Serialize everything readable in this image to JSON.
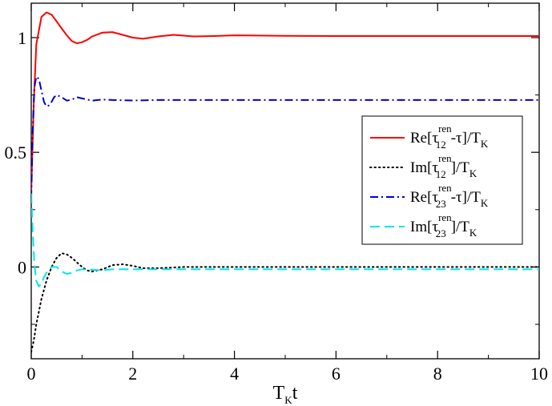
{
  "chart_data": {
    "type": "line",
    "title": "",
    "xlabel": {
      "base": "T",
      "sub": "K",
      "tail": "t"
    },
    "ylabel": "",
    "xlim": [
      0,
      10
    ],
    "ylim": [
      -0.4,
      1.15
    ],
    "xticks": [
      0,
      2,
      4,
      6,
      8,
      10
    ],
    "xtick_labels": [
      "0",
      "2",
      "4",
      "6",
      "8",
      "10"
    ],
    "yticks": [
      0,
      0.5,
      1
    ],
    "ytick_labels": [
      "0",
      "0.5",
      "1"
    ],
    "grid": false,
    "legend_position": "middle-right",
    "series": [
      {
        "name": "Re[τ12ren-τ]/TK",
        "legend": {
          "pre": "Re[τ",
          "sup": "ren",
          "sub": "12",
          "post": "-τ]/T",
          "post_sub": "K"
        },
        "color": "#ff0000",
        "dash": "solid",
        "x": [
          0,
          0.05,
          0.1,
          0.2,
          0.3,
          0.4,
          0.5,
          0.6,
          0.7,
          0.8,
          0.9,
          1.0,
          1.1,
          1.2,
          1.4,
          1.6,
          1.8,
          2.0,
          2.2,
          2.5,
          2.8,
          3.2,
          3.6,
          4.0,
          5.0,
          6.0,
          8.0,
          10.0
        ],
        "y": [
          0.33,
          0.72,
          0.97,
          1.09,
          1.11,
          1.1,
          1.07,
          1.04,
          1.01,
          0.985,
          0.975,
          0.98,
          0.99,
          1.005,
          1.022,
          1.024,
          1.012,
          1.0,
          0.995,
          1.005,
          1.012,
          1.005,
          1.007,
          1.01,
          1.008,
          1.007,
          1.007,
          1.007
        ]
      },
      {
        "name": "Im[τ12ren]/TK",
        "legend": {
          "pre": "Im[τ",
          "sup": "ren",
          "sub": "12",
          "post": "]/T",
          "post_sub": "K"
        },
        "color": "#000000",
        "dash": "dotted",
        "x": [
          0,
          0.05,
          0.1,
          0.2,
          0.3,
          0.4,
          0.5,
          0.6,
          0.7,
          0.8,
          0.9,
          1.0,
          1.1,
          1.2,
          1.3,
          1.4,
          1.6,
          1.8,
          2.0,
          2.2,
          2.5,
          3.0,
          3.5,
          4.0,
          5.0,
          6.0,
          8.0,
          10.0
        ],
        "y": [
          -0.37,
          -0.32,
          -0.25,
          -0.14,
          -0.06,
          0.0,
          0.04,
          0.06,
          0.055,
          0.04,
          0.02,
          0.0,
          -0.015,
          -0.02,
          -0.015,
          -0.01,
          0.008,
          0.012,
          0.005,
          -0.005,
          -0.005,
          0.0,
          0.0,
          0.0,
          0.0,
          0.0,
          0.0,
          0.0
        ]
      },
      {
        "name": "Re[τ23ren-τ]/TK",
        "legend": {
          "pre": "Re[τ",
          "sup": "ren",
          "sub": "23",
          "post": "-τ]/T",
          "post_sub": "K"
        },
        "color": "#0000cc",
        "dash": "dashdot",
        "x": [
          0,
          0.03,
          0.06,
          0.1,
          0.15,
          0.2,
          0.25,
          0.3,
          0.35,
          0.4,
          0.45,
          0.5,
          0.6,
          0.7,
          0.8,
          0.9,
          1.0,
          1.2,
          1.4,
          1.6,
          2.0,
          2.5,
          3.0,
          4.0,
          6.0,
          8.0,
          10.0
        ],
        "y": [
          0.3,
          0.6,
          0.78,
          0.83,
          0.82,
          0.77,
          0.72,
          0.7,
          0.705,
          0.72,
          0.74,
          0.75,
          0.74,
          0.725,
          0.73,
          0.74,
          0.735,
          0.725,
          0.73,
          0.728,
          0.726,
          0.728,
          0.728,
          0.728,
          0.728,
          0.728,
          0.728
        ]
      },
      {
        "name": "Im[τ23ren]/TK",
        "legend": {
          "pre": "Im[τ",
          "sup": "ren",
          "sub": "23",
          "post": "]/T",
          "post_sub": "K"
        },
        "color": "#00e5ee",
        "dash": "dashed",
        "x": [
          0,
          0.03,
          0.06,
          0.1,
          0.15,
          0.2,
          0.25,
          0.3,
          0.35,
          0.4,
          0.5,
          0.6,
          0.7,
          0.8,
          0.9,
          1.0,
          1.2,
          1.4,
          1.6,
          2.0,
          2.5,
          3.0,
          4.0,
          6.0,
          8.0,
          10.0
        ],
        "y": [
          0.32,
          0.15,
          0.02,
          -0.06,
          -0.085,
          -0.07,
          -0.045,
          -0.025,
          -0.01,
          0.0,
          0.0,
          -0.02,
          -0.03,
          -0.025,
          -0.015,
          -0.01,
          -0.012,
          -0.015,
          -0.01,
          -0.01,
          -0.01,
          -0.01,
          -0.01,
          -0.01,
          -0.01,
          -0.01
        ]
      }
    ]
  }
}
